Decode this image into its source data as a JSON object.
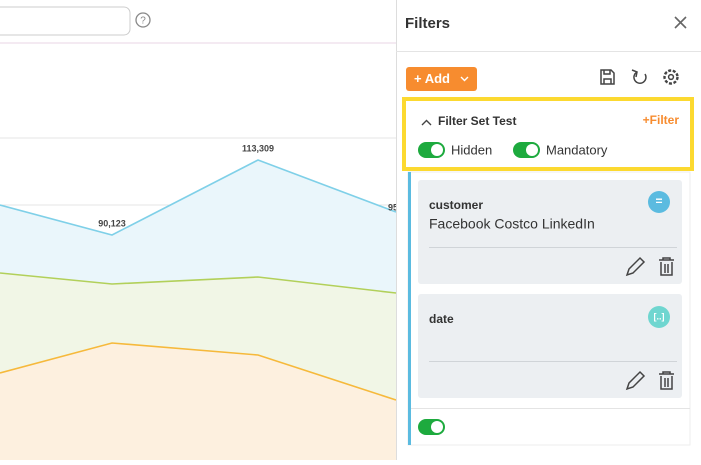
{
  "chart_labels": [
    "113,309",
    "90,123",
    "95"
  ],
  "panel": {
    "title": "Filters",
    "add_button": "+ Add",
    "filter_set": {
      "name": "Filter Set Test",
      "add_filter": "+Filter",
      "toggles": [
        "Hidden",
        "Mandatory"
      ]
    },
    "filters": [
      {
        "field": "customer",
        "value": "Facebook Costco LinkedIn",
        "badge": "="
      },
      {
        "field": "date",
        "badge": "[..]"
      }
    ]
  }
}
